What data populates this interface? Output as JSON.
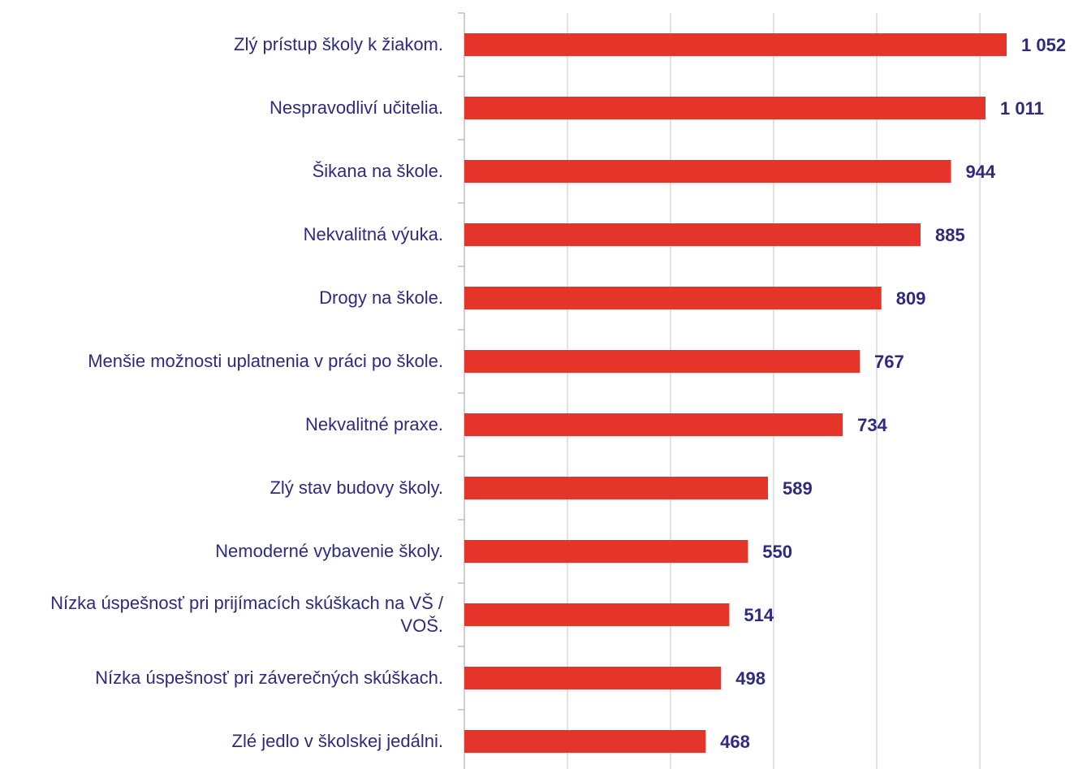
{
  "chart_data": {
    "type": "barh",
    "categories": [
      "Zlý prístup školy k žiakom.",
      "Nespravodliví učitelia.",
      "Šikana na škole.",
      "Nekvalitná výuka.",
      "Drogy na škole.",
      "Menšie možnosti uplatnenia v práci po škole.",
      "Nekvalitné praxe.",
      "Zlý stav budovy školy.",
      "Nemoderné vybavenie školy.",
      "Nízka úspešnosť pri prijímacích skúškach na VŠ / VOŠ.",
      "Nízka úspešnosť pri záverečných skúškach.",
      "Zlé jedlo v školskej jedálni."
    ],
    "values": [
      1052,
      1011,
      944,
      885,
      809,
      767,
      734,
      589,
      550,
      514,
      498,
      468
    ],
    "value_labels": [
      "1 052",
      "1 011",
      "944",
      "885",
      "809",
      "767",
      "734",
      "589",
      "550",
      "514",
      "498",
      "468"
    ],
    "color": "#e5352b",
    "xlim": [
      0,
      1100
    ],
    "xticks": [
      0,
      200,
      400,
      600,
      800,
      1000
    ],
    "grid": true
  }
}
